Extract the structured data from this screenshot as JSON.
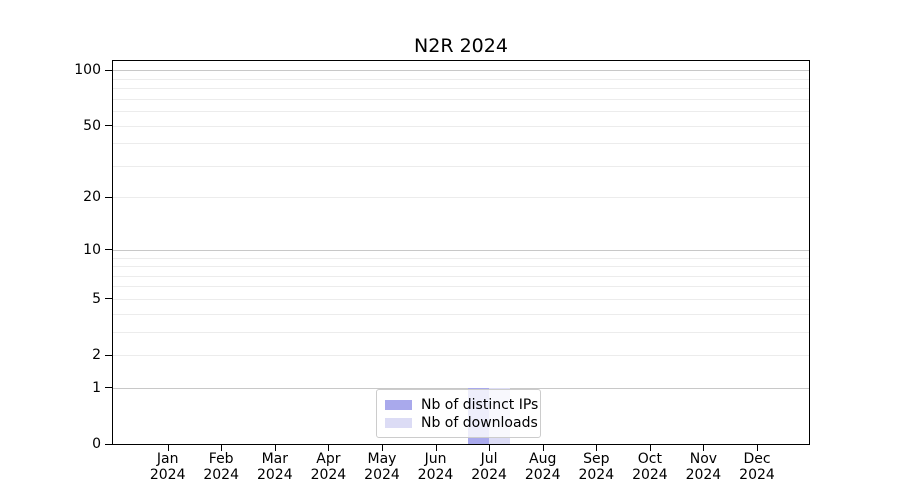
{
  "figure": {
    "title": "N2R 2024"
  },
  "chart_data": {
    "type": "bar",
    "title": "N2R 2024",
    "x_categories": [
      "Jan",
      "Feb",
      "Mar",
      "Apr",
      "May",
      "Jun",
      "Jul",
      "Aug",
      "Sep",
      "Oct",
      "Nov",
      "Dec"
    ],
    "x_year_line": "2024",
    "series": [
      {
        "name": "Nb of distinct IPs",
        "color": "#a9a9ec",
        "values": [
          0,
          0,
          0,
          0,
          0,
          0,
          1,
          0,
          0,
          0,
          0,
          0
        ]
      },
      {
        "name": "Nb of downloads",
        "color": "#dcdcf5",
        "values": [
          0,
          0,
          0,
          0,
          0,
          0,
          1,
          0,
          0,
          0,
          0,
          0
        ]
      }
    ],
    "yscale": "log1p",
    "ylim": [
      0,
      112
    ],
    "yticks_labeled": [
      0,
      1,
      2,
      5,
      10,
      20,
      50,
      100
    ],
    "yticks_major_grid": [
      1,
      10,
      100
    ],
    "yticks_minor_grid": [
      2,
      3,
      4,
      5,
      6,
      7,
      8,
      9,
      20,
      30,
      40,
      50,
      60,
      70,
      80,
      90
    ],
    "xlim": [
      -1.02,
      11.97
    ],
    "bar_width": 0.4,
    "grid": true,
    "legend_position": "lower center"
  },
  "colors": {
    "major_grid": "#c8c8c8",
    "minor_grid": "#ececec",
    "axis": "#000000",
    "text": "#000000",
    "legend_border": "#cccccc"
  }
}
